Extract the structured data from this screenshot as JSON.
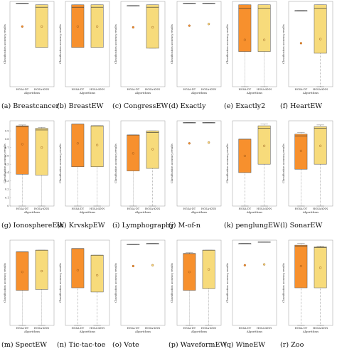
{
  "colors": {
    "dt": "#f7902d",
    "knn": "#f7db7b",
    "stroke": "#555555",
    "mean_dt": "#f7902d",
    "mean_knn": "#f7db7b"
  },
  "chart_data": [
    {
      "type": "box",
      "caption": "(a)  Breastcancer",
      "ylabel": "Classification accuracy results",
      "xlabel": "Algorithms",
      "categories": [
        "HGSA-DT",
        "HGSA-KNN"
      ],
      "yticks": [],
      "boxes": [
        {
          "name": "HGSA-DT",
          "min": 1.0,
          "q1": 1.0,
          "median": 1.0,
          "q3": 1.0,
          "max": 1.0,
          "mean": 0.72
        },
        {
          "name": "HGSA-KNN",
          "min": 0.47,
          "q1": 0.47,
          "median": 0.95,
          "q3": 0.98,
          "max": 0.98,
          "mean": 0.72
        }
      ]
    },
    {
      "type": "box",
      "caption": "(b)  BreastEW",
      "ylabel": "Classification accuracy results",
      "xlabel": "Algorithms",
      "categories": [
        "HGSA-DT",
        "HGSA-KNN"
      ],
      "yticks": [],
      "boxes": [
        {
          "name": "HGSA-DT",
          "min": 0.47,
          "q1": 0.47,
          "median": 0.95,
          "q3": 0.98,
          "max": 0.98,
          "mean": 0.72
        },
        {
          "name": "HGSA-KNN",
          "min": 0.47,
          "q1": 0.47,
          "median": 0.95,
          "q3": 0.98,
          "max": 0.98,
          "mean": 0.72
        }
      ]
    },
    {
      "type": "box",
      "caption": "(c)  CongressEW",
      "ylabel": "Classification accuracy results",
      "xlabel": "Algorithms",
      "categories": [
        "HGSA-DT",
        "HGSA-KNN"
      ],
      "yticks": [],
      "boxes": [
        {
          "name": "HGSA-DT",
          "min": 0.97,
          "q1": 0.97,
          "median": 0.97,
          "q3": 0.97,
          "max": 0.97,
          "mean": 0.71
        },
        {
          "name": "HGSA-KNN",
          "min": 0.46,
          "q1": 0.46,
          "median": 0.95,
          "q3": 0.98,
          "max": 0.98,
          "mean": 0.71
        }
      ]
    },
    {
      "type": "box",
      "caption": "(d)  Exactly",
      "ylabel": "Classification accuracy results",
      "xlabel": "Algorithms",
      "categories": [
        "HGSA-DT",
        "HGSA-KNN"
      ],
      "yticks": [],
      "boxes": [
        {
          "name": "HGSA-DT",
          "min": 1.0,
          "q1": 1.0,
          "median": 1.0,
          "q3": 1.0,
          "max": 1.0,
          "mean": 0.73
        },
        {
          "name": "HGSA-KNN",
          "min": 1.0,
          "q1": 1.0,
          "median": 1.0,
          "q3": 1.0,
          "max": 1.0,
          "mean": 0.75
        }
      ]
    },
    {
      "type": "box",
      "caption": "(e)  Exactly2",
      "ylabel": "Classification accuracy results",
      "xlabel": "Algorithms",
      "categories": [
        "HGSA-DT",
        "HGSA-KNN"
      ],
      "yticks": [],
      "boxes": [
        {
          "name": "HGSA-DT",
          "min": 0.0,
          "q1": 0.42,
          "median": 0.94,
          "q3": 0.98,
          "max": 0.98,
          "mean": 0.56
        },
        {
          "name": "HGSA-KNN",
          "min": 0.0,
          "q1": 0.42,
          "median": 0.94,
          "q3": 0.98,
          "max": 0.98,
          "mean": 0.56
        }
      ]
    },
    {
      "type": "box",
      "caption": "(f)  HeartEW",
      "ylabel": "Classification accuracy results",
      "xlabel": "Algorithms",
      "categories": [
        "HGSA-DT",
        "HGSA-KNN"
      ],
      "yticks": [],
      "boxes": [
        {
          "name": "HGSA-DT",
          "min": 0.91,
          "q1": 0.91,
          "median": 0.91,
          "q3": 0.91,
          "max": 0.91,
          "mean": 0.52
        },
        {
          "name": "HGSA-KNN",
          "min": 0.0,
          "q1": 0.4,
          "median": 0.94,
          "q3": 0.98,
          "max": 0.98,
          "mean": 0.57
        }
      ]
    },
    {
      "type": "box",
      "caption": "(g)  IonosphereEW",
      "ylabel": "Classification accuracy results",
      "xlabel": "Algorithms",
      "categories": [
        "HGSA-DT",
        "HGSA-KNN"
      ],
      "yticks": [
        "0",
        "0.1",
        "0.2",
        "0.3",
        "0.4",
        "0.5",
        "0.6",
        "0.7",
        "0.8",
        "0.9"
      ],
      "boxes": [
        {
          "name": "HGSA-DT",
          "min": 0.0,
          "q1": 0.38,
          "median": 0.95,
          "q3": 0.96,
          "max": 0.97,
          "mean": 0.74
        },
        {
          "name": "HGSA-KNN",
          "min": 0.0,
          "q1": 0.37,
          "median": 0.91,
          "q3": 0.93,
          "max": 0.94,
          "mean": 0.7
        }
      ]
    },
    {
      "type": "box",
      "caption": "(h)  KrvskpEW",
      "ylabel": "Classification accuracy results",
      "xlabel": "Algorithms",
      "categories": [
        "HGSA-DT",
        "HGSA-KNN"
      ],
      "yticks": [],
      "boxes": [
        {
          "name": "HGSA-DT",
          "min": 0.0,
          "q1": 0.47,
          "median": 0.98,
          "q3": 0.98,
          "max": 0.98,
          "mean": 0.75
        },
        {
          "name": "HGSA-KNN",
          "min": 0.0,
          "q1": 0.47,
          "median": 0.96,
          "q3": 0.96,
          "max": 0.96,
          "mean": 0.73
        }
      ]
    },
    {
      "type": "box",
      "caption": "(i)  Lymphography",
      "ylabel": "Classification accuracy results",
      "xlabel": "Algorithms",
      "categories": [
        "HGSA-DT",
        "HGSA-KNN"
      ],
      "yticks": [],
      "boxes": [
        {
          "name": "HGSA-DT",
          "min": 0.0,
          "q1": 0.42,
          "median": 0.85,
          "q3": 0.85,
          "max": 0.85,
          "mean": 0.63
        },
        {
          "name": "HGSA-KNN",
          "min": 0.0,
          "q1": 0.45,
          "median": 0.88,
          "q3": 0.9,
          "max": 0.9,
          "mean": 0.68
        }
      ]
    },
    {
      "type": "box",
      "caption": "(j)  M-of-n",
      "ylabel": "Classification accuracy results",
      "xlabel": "Algorithms",
      "categories": [
        "HGSA-DT",
        "HGSA-KNN"
      ],
      "yticks": [],
      "boxes": [
        {
          "name": "HGSA-DT",
          "min": 1.0,
          "q1": 1.0,
          "median": 1.0,
          "q3": 1.0,
          "max": 1.0,
          "mean": 0.75
        },
        {
          "name": "HGSA-KNN",
          "min": 1.0,
          "q1": 1.0,
          "median": 1.0,
          "q3": 1.0,
          "max": 1.0,
          "mean": 0.76
        }
      ]
    },
    {
      "type": "box",
      "caption": "(k)  penglungEW",
      "ylabel": "Classification accuracy results",
      "xlabel": "Algorithms",
      "categories": [
        "HGSA-DT",
        "HGSA-KNN"
      ],
      "yticks": [],
      "boxes": [
        {
          "name": "HGSA-DT",
          "min": 0.0,
          "q1": 0.4,
          "median": 0.8,
          "q3": 0.8,
          "max": 0.8,
          "mean": 0.6
        },
        {
          "name": "HGSA-KNN",
          "min": 0.0,
          "q1": 0.5,
          "median": 0.93,
          "q3": 0.96,
          "max": 0.98,
          "mean": 0.72
        }
      ]
    },
    {
      "type": "box",
      "caption": "(l)  SonarEW",
      "ylabel": "Classification accuracy results",
      "xlabel": "Algorithms",
      "categories": [
        "HGSA-DT",
        "HGSA-KNN"
      ],
      "yticks": [],
      "boxes": [
        {
          "name": "HGSA-DT",
          "min": 0.0,
          "q1": 0.44,
          "median": 0.84,
          "q3": 0.86,
          "max": 0.88,
          "mean": 0.66
        },
        {
          "name": "HGSA-KNN",
          "min": 0.0,
          "q1": 0.5,
          "median": 0.93,
          "q3": 0.95,
          "max": 0.97,
          "mean": 0.72
        }
      ]
    },
    {
      "type": "box",
      "caption": "(m)  SpectEW",
      "ylabel": "Classification accuracy results",
      "xlabel": "Algorithms",
      "categories": [
        "HGSA-DT",
        "HGSA-KNN"
      ],
      "yticks": [],
      "boxes": [
        {
          "name": "HGSA-DT",
          "min": 0.0,
          "q1": 0.42,
          "median": 0.88,
          "q3": 0.88,
          "max": 0.88,
          "mean": 0.64
        },
        {
          "name": "HGSA-KNN",
          "min": 0.0,
          "q1": 0.43,
          "median": 0.9,
          "q3": 0.9,
          "max": 0.9,
          "mean": 0.65
        }
      ]
    },
    {
      "type": "box",
      "caption": "(n)  Tic-tac-toe",
      "ylabel": "Classification accuracy results",
      "xlabel": "Algorithms",
      "categories": [
        "HGSA-DT",
        "HGSA-KNN"
      ],
      "yticks": [],
      "boxes": [
        {
          "name": "HGSA-DT",
          "min": 0.0,
          "q1": 0.45,
          "median": 0.92,
          "q3": 0.92,
          "max": 0.92,
          "mean": 0.66
        },
        {
          "name": "HGSA-KNN",
          "min": 0.0,
          "q1": 0.4,
          "median": 0.84,
          "q3": 0.84,
          "max": 0.84,
          "mean": 0.6
        }
      ]
    },
    {
      "type": "box",
      "caption": "(o)  Vote",
      "ylabel": "Classification accuracy results",
      "xlabel": "Algorithms",
      "categories": [
        "HGSA-DT",
        "HGSA-KNN"
      ],
      "yticks": [],
      "boxes": [
        {
          "name": "HGSA-DT",
          "min": 0.97,
          "q1": 0.97,
          "median": 0.97,
          "q3": 0.97,
          "max": 0.97,
          "mean": 0.71
        },
        {
          "name": "HGSA-KNN",
          "min": 0.98,
          "q1": 0.98,
          "median": 0.98,
          "q3": 0.98,
          "max": 0.98,
          "mean": 0.72
        }
      ]
    },
    {
      "type": "box",
      "caption": "(p)  WaveformEW",
      "ylabel": "Classification accuracy results",
      "xlabel": "Algorithms",
      "categories": [
        "HGSA-DT",
        "HGSA-KNN"
      ],
      "yticks": [],
      "boxes": [
        {
          "name": "HGSA-DT",
          "min": 0.0,
          "q1": 0.42,
          "median": 0.86,
          "q3": 0.86,
          "max": 0.87,
          "mean": 0.64
        },
        {
          "name": "HGSA-KNN",
          "min": 0.0,
          "q1": 0.44,
          "median": 0.9,
          "q3": 0.9,
          "max": 0.9,
          "mean": 0.67
        }
      ]
    },
    {
      "type": "box",
      "caption": "(q)  WineEW",
      "ylabel": "Classification accuracy results",
      "xlabel": "Algorithms",
      "categories": [
        "HGSA-DT",
        "HGSA-KNN"
      ],
      "yticks": [],
      "boxes": [
        {
          "name": "HGSA-DT",
          "min": 0.98,
          "q1": 0.98,
          "median": 0.98,
          "q3": 0.98,
          "max": 0.98,
          "mean": 0.72
        },
        {
          "name": "HGSA-KNN",
          "min": 1.0,
          "q1": 1.0,
          "median": 1.0,
          "q3": 1.0,
          "max": 1.0,
          "mean": 0.73
        }
      ]
    },
    {
      "type": "box",
      "caption": "(r)  Zoo",
      "ylabel": "Classification accuracy results",
      "xlabel": "Algorithms",
      "categories": [
        "HGSA-DT",
        "HGSA-KNN"
      ],
      "yticks": [],
      "boxes": [
        {
          "name": "HGSA-DT",
          "min": 0.0,
          "q1": 0.45,
          "median": 0.95,
          "q3": 0.96,
          "max": 0.98,
          "mean": 0.71
        },
        {
          "name": "HGSA-KNN",
          "min": 0.0,
          "q1": 0.45,
          "median": 0.93,
          "q3": 0.94,
          "max": 0.95,
          "mean": 0.69
        }
      ]
    }
  ]
}
